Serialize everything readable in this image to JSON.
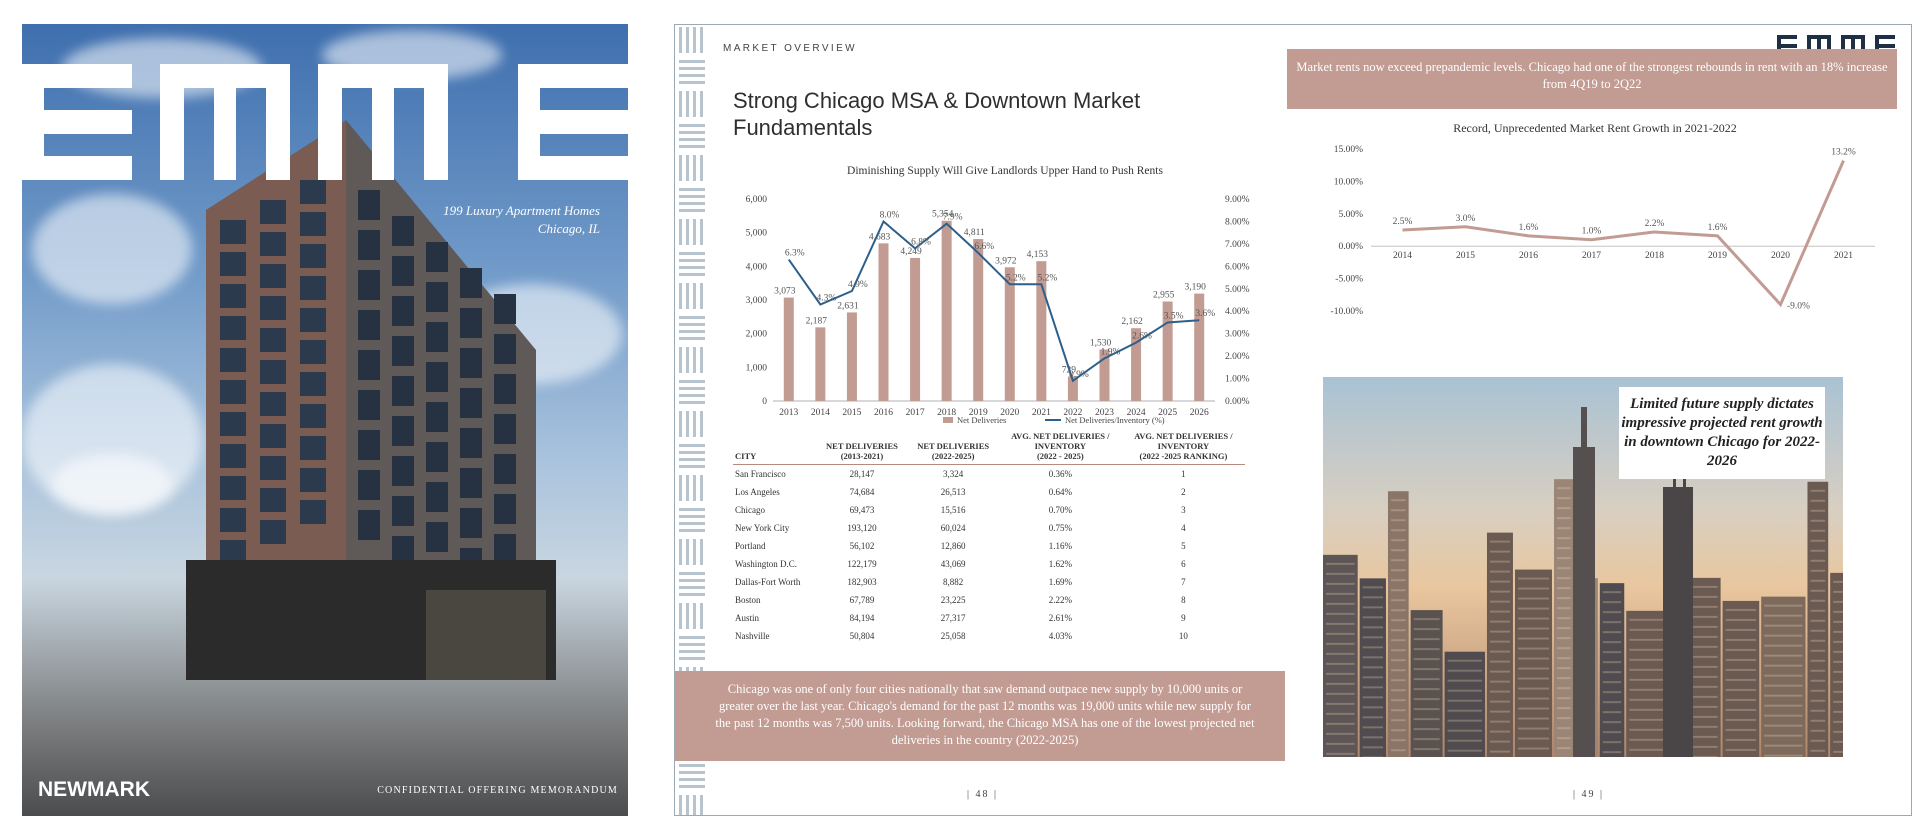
{
  "cover": {
    "logo": "EMME",
    "tagline_1": "199 Luxury Apartment Homes",
    "tagline_2": "Chicago, IL",
    "brand": "NEWMARK",
    "confidential": "CONFIDENTIAL OFFERING MEMORANDUM"
  },
  "left_page": {
    "section_label": "MARKET OVERVIEW",
    "title": "Strong Chicago MSA & Downtown Market Fundamentals",
    "chart_title": "Diminishing Supply Will Give Landlords Upper Hand to Push Rents",
    "page_number": "| 48 |",
    "note": "Chicago was one of only four cities nationally that saw demand outpace new supply by 10,000 units or greater over the last year. Chicago's demand for the past 12 months was 19,000 units while new supply for the past 12 months was 7,500 units. Looking forward, the Chicago MSA has one of the lowest projected net deliveries in the country (2022-2025)"
  },
  "table": {
    "headers": [
      {
        "l1": "CITY",
        "l2": "",
        "l3": ""
      },
      {
        "l1": "NET DELIVERIES",
        "l2": "(2013-2021)",
        "l3": ""
      },
      {
        "l1": "NET DELIVERIES",
        "l2": "(2022-2025)",
        "l3": ""
      },
      {
        "l1": "AVG. NET DELIVERIES /",
        "l2": "INVENTORY",
        "l3": "(2022 - 2025)"
      },
      {
        "l1": "AVG. NET DELIVERIES /",
        "l2": "INVENTORY",
        "l3": "(2022 -2025 RANKING)"
      }
    ],
    "rows": [
      [
        "San Francisco",
        "28,147",
        "3,324",
        "0.36%",
        "1"
      ],
      [
        "Los Angeles",
        "74,684",
        "26,513",
        "0.64%",
        "2"
      ],
      [
        "Chicago",
        "69,473",
        "15,516",
        "0.70%",
        "3"
      ],
      [
        "New York City",
        "193,120",
        "60,024",
        "0.75%",
        "4"
      ],
      [
        "Portland",
        "56,102",
        "12,860",
        "1.16%",
        "5"
      ],
      [
        "Washington D.C.",
        "122,179",
        "43,069",
        "1.62%",
        "6"
      ],
      [
        "Dallas-Fort Worth",
        "182,903",
        "8,882",
        "1.69%",
        "7"
      ],
      [
        "Boston",
        "67,789",
        "23,225",
        "2.22%",
        "8"
      ],
      [
        "Austin",
        "84,194",
        "27,317",
        "2.61%",
        "9"
      ],
      [
        "Nashville",
        "50,804",
        "25,058",
        "4.03%",
        "10"
      ]
    ]
  },
  "right_page": {
    "logo": "EMME",
    "callout": "Market rents now exceed prepandemic levels. Chicago had one of the strongest rebounds in rent with an 18% increase from 4Q19 to 2Q22",
    "chart_title": "Record, Unprecedented Market Rent Growth in 2021-2022",
    "caption": "Limited future supply dictates impressive projected rent growth in downtown Chicago for 2022-2026",
    "page_number": "| 49 |"
  },
  "chart_data": [
    {
      "type": "bar",
      "title": "Diminishing Supply Will Give Landlords Upper Hand to Push Rents",
      "categories": [
        "2013",
        "2014",
        "2015",
        "2016",
        "2017",
        "2018",
        "2019",
        "2020",
        "2021",
        "2022",
        "2023",
        "2024",
        "2025",
        "2026"
      ],
      "bar_labels": [
        "3,073",
        "2,187",
        "2,631",
        "4,683",
        "4,249",
        "5,354",
        "4,811",
        "3,972",
        "4,153",
        "729",
        "1,530",
        "2,162",
        "2,955",
        "3,190"
      ],
      "line_labels": [
        "6.3%",
        "4.3%",
        "4.9%",
        "8.0%",
        "6.8%",
        "7.9%",
        "6.6%",
        "5.2%",
        "5.2%",
        "0.9%",
        "1.9%",
        "2.6%",
        "3.5%",
        "3.6%"
      ],
      "series": [
        {
          "name": "Net Deliveries",
          "type": "bar",
          "axis": "left",
          "color": "#c29b92",
          "values": [
            3073,
            2187,
            2631,
            4683,
            4249,
            5354,
            4811,
            3972,
            4153,
            729,
            1530,
            2162,
            2955,
            3190
          ]
        },
        {
          "name": "Net Deliveries/Inventory (%)",
          "type": "line",
          "axis": "right",
          "color": "#2e5f8a",
          "values": [
            6.3,
            4.3,
            4.9,
            8.0,
            6.8,
            7.9,
            6.6,
            5.2,
            5.2,
            0.9,
            1.9,
            2.6,
            3.5,
            3.6
          ]
        }
      ],
      "ylim": [
        0,
        6000
      ],
      "y_ticks": [
        "0",
        "1,000",
        "2,000",
        "3,000",
        "4,000",
        "5,000",
        "6,000"
      ],
      "y2lim": [
        0,
        9
      ],
      "y2_ticks": [
        "0.00%",
        "1.00%",
        "2.00%",
        "3.00%",
        "4.00%",
        "5.00%",
        "6.00%",
        "7.00%",
        "8.00%",
        "9.00%"
      ],
      "legend": "bottom"
    },
    {
      "type": "line",
      "title": "Record, Unprecedented Market Rent Growth in 2021-2022",
      "categories": [
        "2014",
        "2015",
        "2016",
        "2017",
        "2018",
        "2019",
        "2020",
        "2021"
      ],
      "series": [
        {
          "name": "",
          "color": "#c29b92",
          "values": [
            2.5,
            3.0,
            1.6,
            1.0,
            2.2,
            1.6,
            -9.0,
            13.2
          ]
        }
      ],
      "point_labels": [
        "2.5%",
        "3.0%",
        "1.6%",
        "1.0%",
        "2.2%",
        "1.6%",
        "-9.0%",
        "13.2%"
      ],
      "ylim": [
        -10,
        15
      ],
      "y_ticks": [
        "-10.00%",
        "-5.00%",
        "0.00%",
        "5.00%",
        "10.00%",
        "15.00%"
      ]
    }
  ]
}
